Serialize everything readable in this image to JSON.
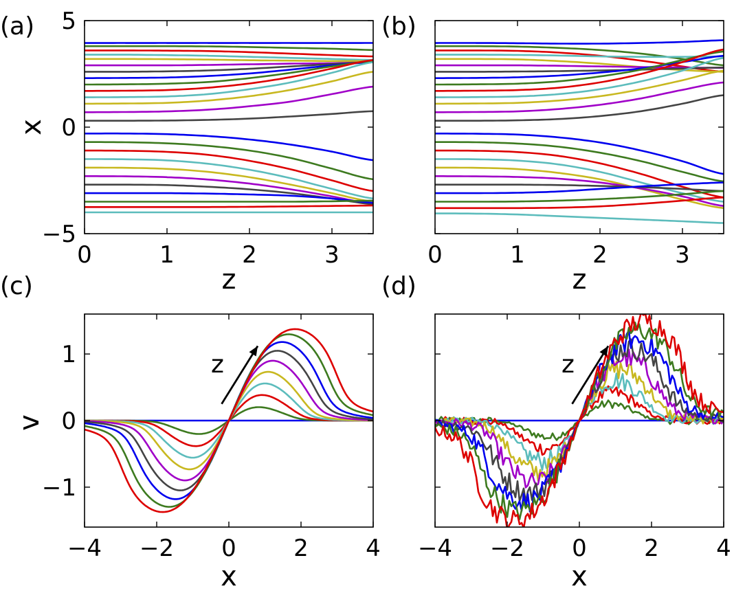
{
  "colors": {
    "cycle": [
      "#0000ee",
      "#3d7a1f",
      "#dd0000",
      "#5cbcbc",
      "#c8b820",
      "#a000c8",
      "#444444"
    ],
    "arrow": "#000000"
  },
  "chart_data": [
    {
      "panel": "(a)",
      "type": "line",
      "description_of_series": "particle trajectories x(z)",
      "xlabel": "z",
      "ylabel": "x",
      "xlim": [
        0,
        3.5
      ],
      "ylim": [
        -5,
        5
      ],
      "xticks": [
        0,
        1,
        2,
        3
      ],
      "xtick_labels": [
        "0",
        "1",
        "2",
        "3"
      ],
      "yticks": [
        5,
        0,
        -5
      ],
      "ytick_labels": [
        "5",
        "0",
        "−5"
      ],
      "grid": false,
      "x": [
        0,
        0.5,
        1,
        1.5,
        2,
        2.5,
        3,
        3.5
      ],
      "series": [
        {
          "values": [
            3.95,
            3.95,
            3.95,
            3.95,
            3.95,
            3.95,
            3.95,
            3.95
          ]
        },
        {
          "values": [
            3.8,
            3.8,
            3.8,
            3.79,
            3.76,
            3.72,
            3.68,
            3.62
          ]
        },
        {
          "values": [
            3.6,
            3.6,
            3.59,
            3.57,
            3.52,
            3.45,
            3.38,
            3.32
          ]
        },
        {
          "values": [
            3.4,
            3.4,
            3.38,
            3.35,
            3.3,
            3.25,
            3.2,
            3.15
          ]
        },
        {
          "values": [
            3.2,
            3.2,
            3.19,
            3.17,
            3.14,
            3.12,
            3.1,
            3.1
          ]
        },
        {
          "values": [
            2.9,
            2.9,
            2.9,
            2.92,
            2.95,
            2.98,
            3.0,
            3.05
          ]
        },
        {
          "values": [
            2.6,
            2.6,
            2.62,
            2.66,
            2.74,
            2.85,
            2.96,
            3.05
          ]
        },
        {
          "values": [
            2.3,
            2.31,
            2.33,
            2.4,
            2.52,
            2.7,
            2.9,
            3.05
          ]
        },
        {
          "values": [
            2.0,
            2.01,
            2.04,
            2.12,
            2.3,
            2.55,
            2.85,
            3.1
          ]
        },
        {
          "values": [
            1.7,
            1.71,
            1.74,
            1.85,
            2.05,
            2.35,
            2.75,
            3.15
          ]
        },
        {
          "values": [
            1.4,
            1.41,
            1.44,
            1.55,
            1.78,
            2.1,
            2.55,
            3.05
          ]
        },
        {
          "values": [
            1.1,
            1.11,
            1.14,
            1.25,
            1.45,
            1.75,
            2.15,
            2.6
          ]
        },
        {
          "values": [
            0.7,
            0.71,
            0.74,
            0.82,
            0.98,
            1.2,
            1.55,
            1.9
          ]
        },
        {
          "values": [
            0.3,
            0.3,
            0.31,
            0.34,
            0.4,
            0.5,
            0.62,
            0.75
          ]
        },
        {
          "values": [
            -0.3,
            -0.3,
            -0.33,
            -0.42,
            -0.58,
            -0.82,
            -1.15,
            -1.55
          ]
        },
        {
          "values": [
            -0.7,
            -0.71,
            -0.76,
            -0.88,
            -1.1,
            -1.45,
            -1.95,
            -2.45
          ]
        },
        {
          "values": [
            -1.1,
            -1.11,
            -1.16,
            -1.3,
            -1.58,
            -1.98,
            -2.5,
            -3.0
          ]
        },
        {
          "values": [
            -1.5,
            -1.51,
            -1.56,
            -1.72,
            -2.0,
            -2.4,
            -2.9,
            -3.35
          ]
        },
        {
          "values": [
            -1.9,
            -1.91,
            -1.96,
            -2.1,
            -2.35,
            -2.7,
            -3.1,
            -3.5
          ]
        },
        {
          "values": [
            -2.3,
            -2.31,
            -2.35,
            -2.46,
            -2.65,
            -2.92,
            -3.25,
            -3.6
          ]
        },
        {
          "values": [
            -2.7,
            -2.7,
            -2.72,
            -2.8,
            -2.92,
            -3.1,
            -3.35,
            -3.62
          ]
        },
        {
          "values": [
            -3.1,
            -3.1,
            -3.1,
            -3.12,
            -3.16,
            -3.22,
            -3.35,
            -3.55
          ]
        },
        {
          "values": [
            -3.5,
            -3.5,
            -3.5,
            -3.5,
            -3.5,
            -3.5,
            -3.48,
            -3.45
          ]
        },
        {
          "values": [
            -3.75,
            -3.75,
            -3.75,
            -3.75,
            -3.74,
            -3.72,
            -3.7,
            -3.68
          ]
        },
        {
          "values": [
            -4.0,
            -4.0,
            -4.0,
            -4.0,
            -4.0,
            -4.0,
            -4.0,
            -4.0
          ]
        }
      ]
    },
    {
      "panel": "(b)",
      "type": "line",
      "xlabel": "z",
      "ylabel": "",
      "xlim": [
        0,
        3.5
      ],
      "ylim": [
        -5,
        5
      ],
      "xticks": [
        0,
        1,
        2,
        3
      ],
      "xtick_labels": [
        "0",
        "1",
        "2",
        "3"
      ],
      "yticks": [
        5,
        0,
        -5
      ],
      "ytick_labels": [],
      "grid": false,
      "x": [
        0,
        0.5,
        1,
        1.5,
        2,
        2.5,
        3,
        3.5
      ],
      "series": [
        {
          "values": [
            3.95,
            3.95,
            3.94,
            3.92,
            3.92,
            3.95,
            4.0,
            4.08
          ]
        },
        {
          "values": [
            3.8,
            3.8,
            3.78,
            3.72,
            3.62,
            3.45,
            3.2,
            2.9
          ]
        },
        {
          "values": [
            3.6,
            3.6,
            3.58,
            3.5,
            3.35,
            3.12,
            2.85,
            2.6
          ]
        },
        {
          "values": [
            3.4,
            3.4,
            3.39,
            3.36,
            3.32,
            3.3,
            3.3,
            3.32
          ]
        },
        {
          "values": [
            3.2,
            3.2,
            3.18,
            3.1,
            2.98,
            2.82,
            2.68,
            2.6
          ]
        },
        {
          "values": [
            2.9,
            2.9,
            2.9,
            2.88,
            2.85,
            2.82,
            2.8,
            2.78
          ]
        },
        {
          "values": [
            2.6,
            2.6,
            2.61,
            2.63,
            2.66,
            2.7,
            2.75,
            2.8
          ]
        },
        {
          "values": [
            2.3,
            2.31,
            2.34,
            2.42,
            2.56,
            2.76,
            3.05,
            3.35
          ]
        },
        {
          "values": [
            2.0,
            2.01,
            2.04,
            2.15,
            2.38,
            2.7,
            3.15,
            3.55
          ]
        },
        {
          "values": [
            1.7,
            1.71,
            1.74,
            1.85,
            2.1,
            2.5,
            3.05,
            3.65
          ]
        },
        {
          "values": [
            1.4,
            1.41,
            1.44,
            1.55,
            1.78,
            2.15,
            2.65,
            3.25
          ]
        },
        {
          "values": [
            1.1,
            1.11,
            1.14,
            1.25,
            1.45,
            1.78,
            2.2,
            2.65
          ]
        },
        {
          "values": [
            0.7,
            0.71,
            0.74,
            0.85,
            1.05,
            1.35,
            1.75,
            2.1
          ]
        },
        {
          "values": [
            0.3,
            0.3,
            0.32,
            0.38,
            0.52,
            0.75,
            1.1,
            1.5
          ]
        },
        {
          "values": [
            -0.3,
            -0.31,
            -0.35,
            -0.48,
            -0.72,
            -1.1,
            -1.6,
            -2.2
          ]
        },
        {
          "values": [
            -0.7,
            -0.71,
            -0.77,
            -0.92,
            -1.2,
            -1.6,
            -2.1,
            -2.55
          ]
        },
        {
          "values": [
            -1.1,
            -1.11,
            -1.17,
            -1.35,
            -1.7,
            -2.2,
            -2.8,
            -3.3
          ]
        },
        {
          "values": [
            -1.5,
            -1.51,
            -1.57,
            -1.75,
            -2.1,
            -2.6,
            -3.1,
            -3.5
          ]
        },
        {
          "values": [
            -1.9,
            -1.91,
            -1.97,
            -2.15,
            -2.45,
            -2.9,
            -3.4,
            -3.8
          ]
        },
        {
          "values": [
            -2.3,
            -2.31,
            -2.34,
            -2.42,
            -2.6,
            -2.88,
            -3.25,
            -3.7
          ]
        },
        {
          "values": [
            -2.7,
            -2.7,
            -2.7,
            -2.72,
            -2.76,
            -2.82,
            -2.9,
            -3.0
          ]
        },
        {
          "values": [
            -3.1,
            -3.1,
            -3.08,
            -3.02,
            -2.9,
            -2.78,
            -2.68,
            -2.6
          ]
        },
        {
          "values": [
            -3.5,
            -3.5,
            -3.49,
            -3.45,
            -3.38,
            -3.28,
            -3.15,
            -3.0
          ]
        },
        {
          "values": [
            -3.8,
            -3.8,
            -3.8,
            -3.78,
            -3.72,
            -3.6,
            -3.45,
            -3.3
          ]
        },
        {
          "values": [
            -4.05,
            -4.06,
            -4.1,
            -4.18,
            -4.26,
            -4.34,
            -4.42,
            -4.5
          ]
        }
      ]
    },
    {
      "panel": "(c)",
      "type": "line",
      "xlabel": "x",
      "ylabel": "v",
      "xlim": [
        -4,
        4
      ],
      "ylim": [
        -1.6,
        1.6
      ],
      "xticks": [
        -4,
        -2,
        0,
        2,
        4
      ],
      "xtick_labels": [
        "−4",
        "−2",
        "0",
        "2",
        "4"
      ],
      "yticks": [
        1,
        0,
        -1
      ],
      "ytick_labels": [
        "1",
        "0",
        "−1"
      ],
      "grid": false,
      "arrow": {
        "label": "z",
        "from": [
          -0.2,
          0.25
        ],
        "to": [
          0.8,
          1.12
        ]
      },
      "series_form": "odd velocity profiles v(x) growing with z; each series gives amplitude A, peak position p, edge steepness s",
      "series": [
        {
          "A": 0.0,
          "p": 1.0,
          "s": 0.3
        },
        {
          "A": 0.2,
          "p": 1.0,
          "s": 0.3
        },
        {
          "A": 0.38,
          "p": 1.1,
          "s": 0.35
        },
        {
          "A": 0.55,
          "p": 1.2,
          "s": 0.4
        },
        {
          "A": 0.72,
          "p": 1.3,
          "s": 0.45
        },
        {
          "A": 0.88,
          "p": 1.45,
          "s": 0.5
        },
        {
          "A": 1.02,
          "p": 1.6,
          "s": 0.58
        },
        {
          "A": 1.14,
          "p": 1.75,
          "s": 0.66
        },
        {
          "A": 1.24,
          "p": 1.95,
          "s": 0.75
        },
        {
          "A": 1.3,
          "p": 2.15,
          "s": 0.85
        }
      ]
    },
    {
      "panel": "(d)",
      "type": "line",
      "xlabel": "x",
      "ylabel": "",
      "xlim": [
        -4,
        4
      ],
      "ylim": [
        -1.6,
        1.6
      ],
      "xticks": [
        -4,
        -2,
        0,
        2,
        4
      ],
      "xtick_labels": [
        "−4",
        "−2",
        "0",
        "2",
        "4"
      ],
      "yticks": [
        1,
        0,
        -1
      ],
      "ytick_labels": [],
      "grid": false,
      "arrow": {
        "label": "z",
        "from": [
          -0.2,
          0.25
        ],
        "to": [
          0.8,
          1.12
        ]
      },
      "series_form": "noisy counterparts of panel (c) profiles; series give amplitude A, peak position p, edge steepness s",
      "series": [
        {
          "A": 0.0,
          "p": 1.0,
          "s": 0.3
        },
        {
          "A": 0.25,
          "p": 1.0,
          "s": 0.3
        },
        {
          "A": 0.42,
          "p": 1.1,
          "s": 0.35
        },
        {
          "A": 0.6,
          "p": 1.2,
          "s": 0.4
        },
        {
          "A": 0.76,
          "p": 1.35,
          "s": 0.45
        },
        {
          "A": 0.92,
          "p": 1.5,
          "s": 0.5
        },
        {
          "A": 1.06,
          "p": 1.65,
          "s": 0.58
        },
        {
          "A": 1.18,
          "p": 1.8,
          "s": 0.66
        },
        {
          "A": 1.3,
          "p": 1.95,
          "s": 0.75
        },
        {
          "A": 1.42,
          "p": 2.1,
          "s": 0.85
        }
      ]
    }
  ]
}
